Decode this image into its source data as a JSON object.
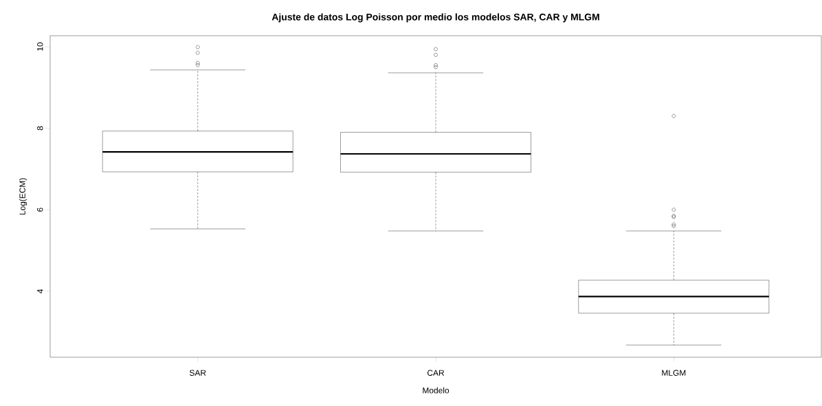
{
  "chart_data": {
    "type": "box",
    "title": "Ajuste de datos Log Poisson por medio los modelos SAR, CAR y MLGM",
    "xlabel": "Modelo",
    "ylabel": "Log(ECM)",
    "categories": [
      "SAR",
      "CAR",
      "MLGM"
    ],
    "boxes": [
      {
        "low": 5.53,
        "q1": 6.93,
        "median": 7.42,
        "q3": 7.93,
        "high": 9.43,
        "outliers": [
          9.99,
          9.85,
          9.6,
          9.55
        ]
      },
      {
        "low": 5.48,
        "q1": 6.92,
        "median": 7.37,
        "q3": 7.9,
        "high": 9.36,
        "outliers": [
          9.94,
          9.8,
          9.55,
          9.5
        ]
      },
      {
        "low": 2.68,
        "q1": 3.46,
        "median": 3.87,
        "q3": 4.27,
        "high": 5.48,
        "outliers": [
          8.3,
          6.0,
          5.85,
          5.82,
          5.64,
          5.6
        ]
      }
    ],
    "ylim": [
      2.38,
      10.27
    ],
    "yticks": [
      4,
      6,
      8,
      10
    ]
  }
}
